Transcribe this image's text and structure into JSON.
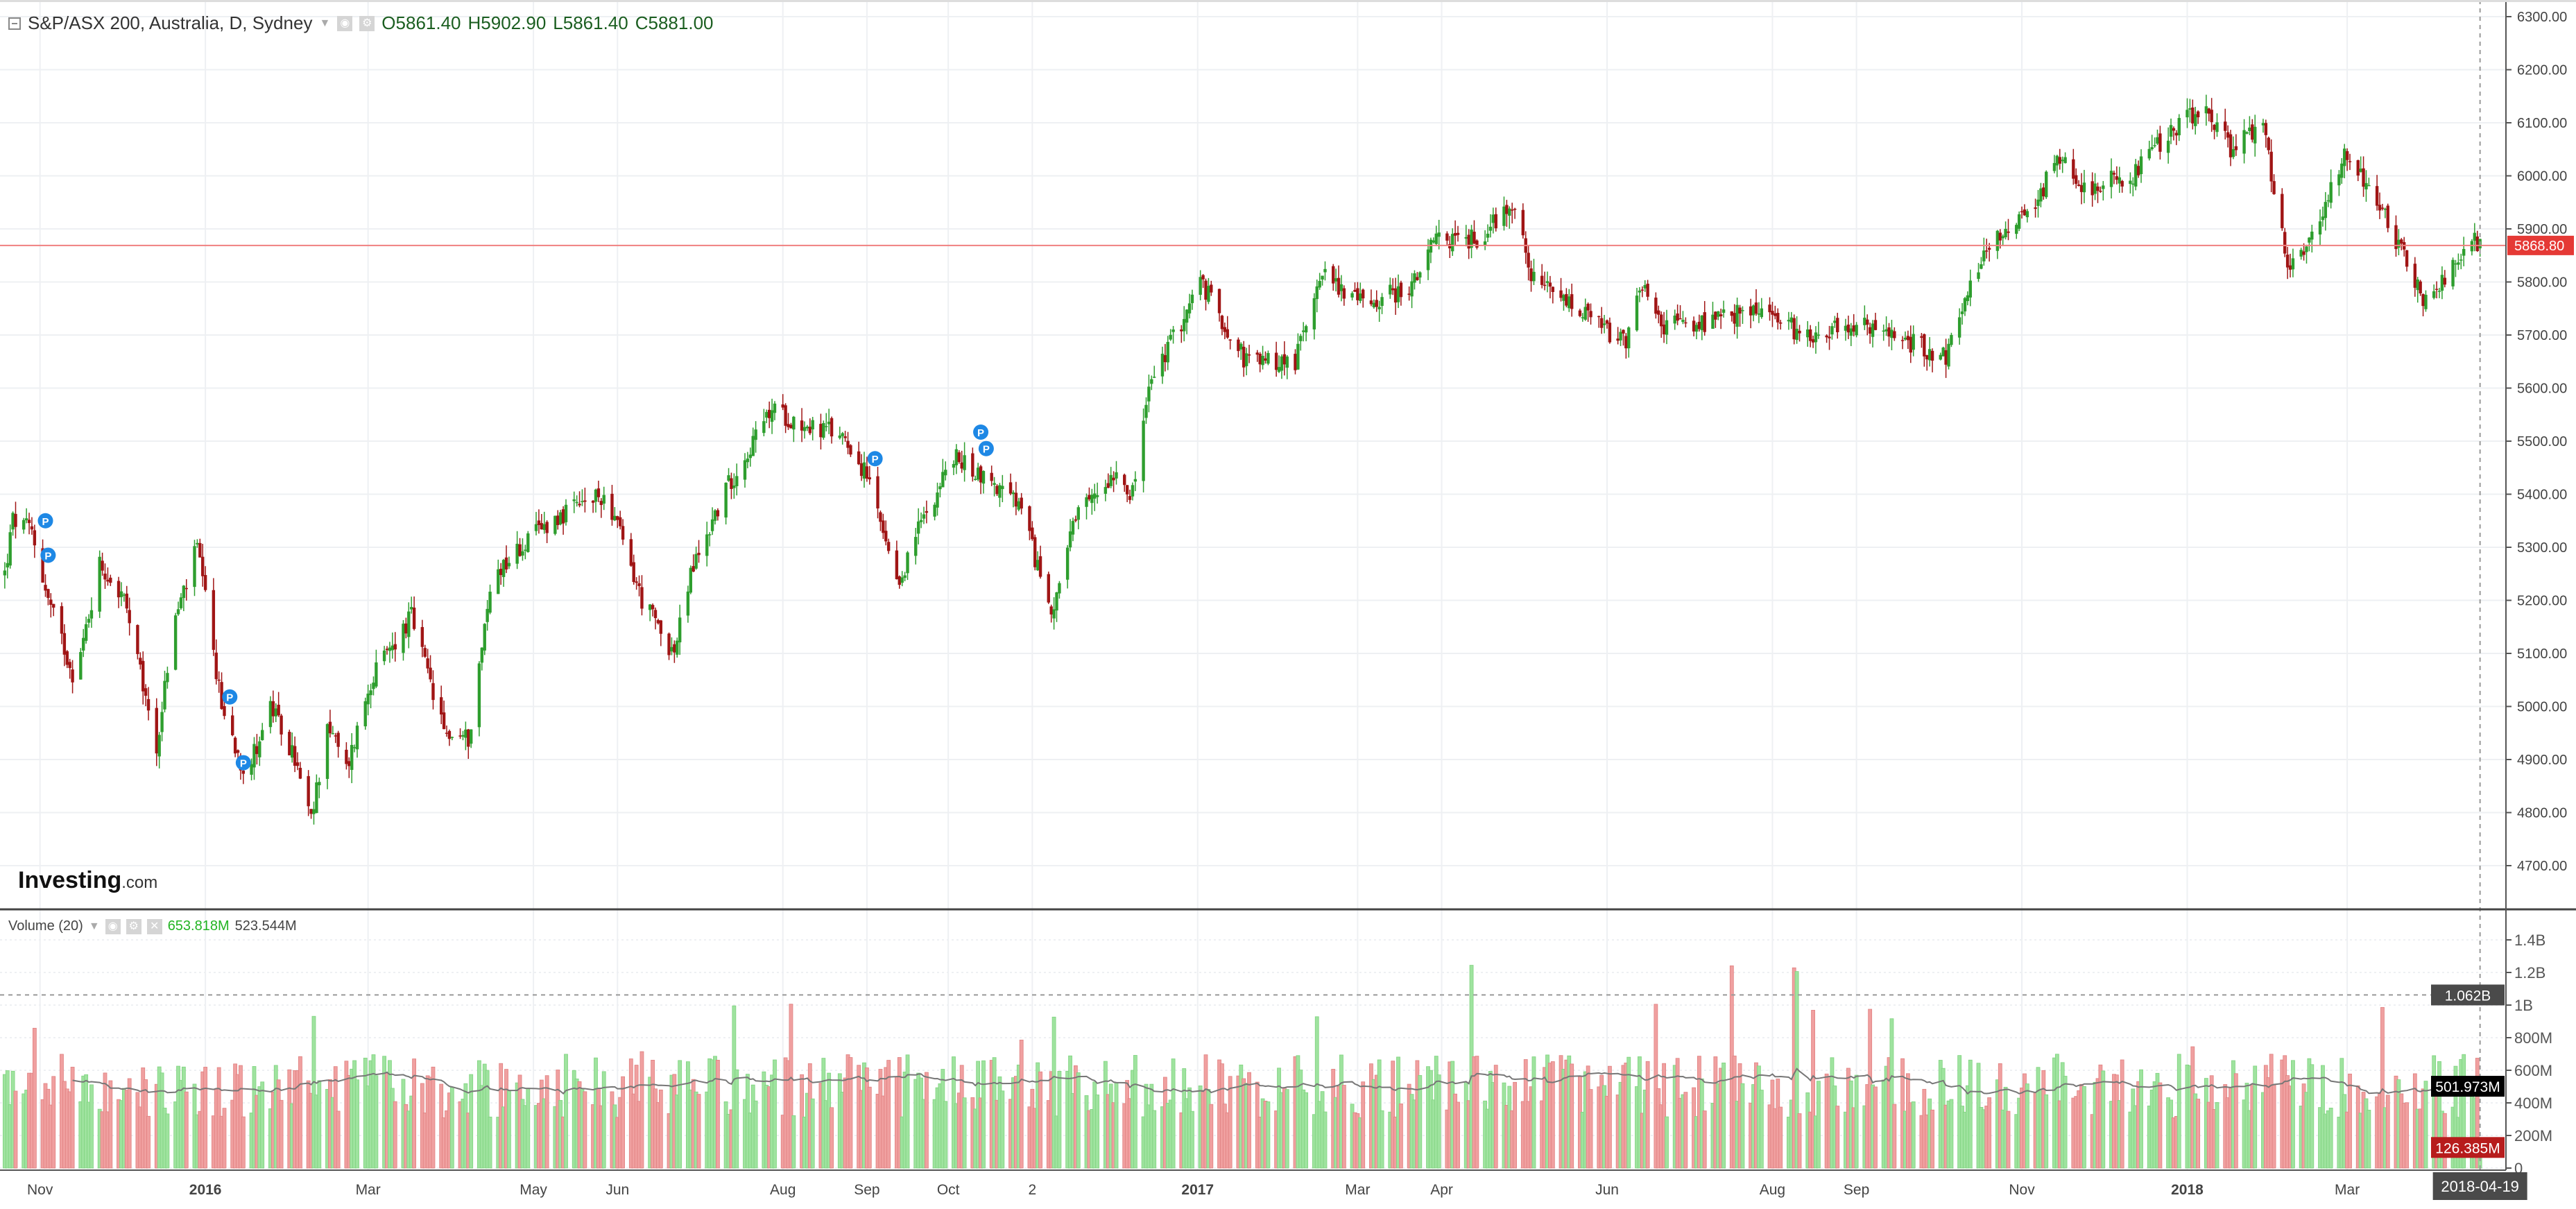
{
  "header": {
    "title": "S&P/ASX 200, Australia, D, Sydney",
    "open": "O5861.40",
    "high": "H5902.90",
    "low": "L5861.40",
    "close": "C5881.00"
  },
  "volume_header": {
    "title": "Volume (20)",
    "value": "653.818M",
    "ma": "523.544M"
  },
  "logo": {
    "brand": "Investing",
    "suffix": ".com"
  },
  "colors": {
    "up": "#2e9e2e",
    "down": "#a01515",
    "vol_up": "#9fe39f",
    "vol_down": "#f0a0a0",
    "price_line": "#f08080"
  },
  "chart_data": [
    {
      "type": "candlestick",
      "title": "S&P/ASX 200, Australia, D, Sydney",
      "ylim": [
        4650,
        6320
      ],
      "yticks": [
        4700,
        4800,
        4900,
        5000,
        5100,
        5200,
        5300,
        5400,
        5500,
        5600,
        5700,
        5800,
        5900,
        6000,
        6100,
        6200,
        6300
      ],
      "ytick_labels": [
        "4700.00",
        "4800.00",
        "4900.00",
        "5000.00",
        "5100.00",
        "5200.00",
        "5300.00",
        "5400.00",
        "5500.00",
        "5600.00",
        "5700.00",
        "5800.00",
        "5900.00",
        "6000.00",
        "6100.00",
        "6200.00",
        "6300.00"
      ],
      "current_price": 5868.8,
      "current_price_label": "5868.80",
      "close_path": [
        [
          "2015-10-19",
          5250
        ],
        [
          "2015-10-22",
          5350
        ],
        [
          "2015-10-29",
          5330
        ],
        [
          "2015-11-04",
          5200
        ],
        [
          "2015-11-14",
          5050
        ],
        [
          "2015-11-23",
          5270
        ],
        [
          "2015-12-02",
          5200
        ],
        [
          "2015-12-14",
          4920
        ],
        [
          "2015-12-20",
          5150
        ],
        [
          "2015-12-29",
          5300
        ],
        [
          "2016-01-07",
          5000
        ],
        [
          "2016-01-16",
          4870
        ],
        [
          "2016-01-25",
          5000
        ],
        [
          "2016-02-03",
          4900
        ],
        [
          "2016-02-09",
          4780
        ],
        [
          "2016-02-15",
          4970
        ],
        [
          "2016-02-22",
          4880
        ],
        [
          "2016-03-02",
          5050
        ],
        [
          "2016-03-17",
          5170
        ],
        [
          "2016-03-29",
          4950
        ],
        [
          "2016-04-07",
          4940
        ],
        [
          "2016-04-16",
          5250
        ],
        [
          "2016-05-07",
          5350
        ],
        [
          "2016-05-28",
          5400
        ],
        [
          "2016-06-10",
          5200
        ],
        [
          "2016-06-22",
          5100
        ],
        [
          "2016-06-28",
          5250
        ],
        [
          "2016-07-10",
          5400
        ],
        [
          "2016-07-28",
          5560
        ],
        [
          "2016-08-09",
          5530
        ],
        [
          "2016-08-24",
          5510
        ],
        [
          "2016-09-02",
          5420
        ],
        [
          "2016-09-12",
          5220
        ],
        [
          "2016-09-21",
          5350
        ],
        [
          "2016-10-03",
          5470
        ],
        [
          "2016-10-15",
          5430
        ],
        [
          "2016-10-27",
          5380
        ],
        [
          "2016-11-08",
          5180
        ],
        [
          "2016-11-17",
          5350
        ],
        [
          "2016-12-02",
          5450
        ],
        [
          "2016-12-08",
          5400
        ],
        [
          "2016-12-14",
          5600
        ],
        [
          "2017-01-02",
          5800
        ],
        [
          "2017-01-19",
          5650
        ],
        [
          "2017-02-06",
          5650
        ],
        [
          "2017-02-15",
          5820
        ],
        [
          "2017-03-03",
          5760
        ],
        [
          "2017-03-21",
          5790
        ],
        [
          "2017-03-30",
          5880
        ],
        [
          "2017-04-14",
          5880
        ],
        [
          "2017-04-27",
          5950
        ],
        [
          "2017-05-05",
          5800
        ],
        [
          "2017-05-20",
          5750
        ],
        [
          "2017-06-08",
          5680
        ],
        [
          "2017-06-14",
          5800
        ],
        [
          "2017-06-20",
          5720
        ],
        [
          "2017-07-08",
          5720
        ],
        [
          "2017-07-26",
          5750
        ],
        [
          "2017-08-13",
          5700
        ],
        [
          "2017-08-31",
          5720
        ],
        [
          "2017-09-19",
          5690
        ],
        [
          "2017-10-04",
          5660
        ],
        [
          "2017-10-19",
          5870
        ],
        [
          "2017-11-06",
          5950
        ],
        [
          "2017-11-15",
          6040
        ],
        [
          "2017-11-24",
          5980
        ],
        [
          "2017-12-12",
          6000
        ],
        [
          "2017-12-25",
          6080
        ],
        [
          "2018-01-08",
          6130
        ],
        [
          "2018-01-17",
          6050
        ],
        [
          "2018-01-29",
          6100
        ],
        [
          "2018-02-07",
          5820
        ],
        [
          "2018-02-19",
          5920
        ],
        [
          "2018-02-28",
          6050
        ],
        [
          "2018-03-12",
          5950
        ],
        [
          "2018-03-24",
          5830
        ],
        [
          "2018-03-30",
          5760
        ],
        [
          "2018-04-11",
          5850
        ],
        [
          "2018-04-19",
          5881
        ]
      ],
      "markers": [
        {
          "label": "P",
          "date": "2015-11-03",
          "price": 5350
        },
        {
          "label": "P",
          "date": "2015-11-04",
          "price": 5285
        },
        {
          "label": "P",
          "date": "2016-01-10",
          "price": 5018
        },
        {
          "label": "P",
          "date": "2016-01-15",
          "price": 4894
        },
        {
          "label": "P",
          "date": "2016-09-04",
          "price": 5467
        },
        {
          "label": "P",
          "date": "2016-10-13",
          "price": 5517
        },
        {
          "label": "P",
          "date": "2016-10-15",
          "price": 5486
        }
      ]
    },
    {
      "type": "bar",
      "title": "Volume (20)",
      "ylim": [
        0,
        1450
      ],
      "unit": "M",
      "yticks": [
        0,
        200,
        400,
        600,
        800,
        1000,
        1200,
        1400
      ],
      "ytick_labels": [
        "0",
        "200M",
        "400M",
        "600M",
        "800M",
        "1B",
        "1.2B",
        "1.4B"
      ],
      "typical_volume": 560,
      "last_volume": 126.385,
      "last_volume_label": "126.385M",
      "ma_value_label": "501.973M",
      "highlight_level": 1062,
      "highlight_label": "1.062B"
    }
  ],
  "xaxis": {
    "ticks": [
      [
        "2015-11-01",
        "Nov"
      ],
      [
        "2016-01-01",
        "2016"
      ],
      [
        "2016-03-01",
        "Mar"
      ],
      [
        "2016-05-01",
        "May"
      ],
      [
        "2016-06-01",
        "Jun"
      ],
      [
        "2016-08-01",
        "Aug"
      ],
      [
        "2016-09-01",
        "Sep"
      ],
      [
        "2016-10-01",
        "Oct"
      ],
      [
        "2016-11-01",
        "2"
      ],
      [
        "2017-01-01",
        "2017"
      ],
      [
        "2017-03-01",
        "Mar"
      ],
      [
        "2017-04-01",
        "Apr"
      ],
      [
        "2017-06-01",
        "Jun"
      ],
      [
        "2017-08-01",
        "Aug"
      ],
      [
        "2017-09-01",
        "Sep"
      ],
      [
        "2017-11-01",
        "Nov"
      ],
      [
        "2018-01-01",
        "2018"
      ],
      [
        "2018-03-01",
        "Mar"
      ]
    ],
    "cursor_date": "2018-04-19"
  }
}
